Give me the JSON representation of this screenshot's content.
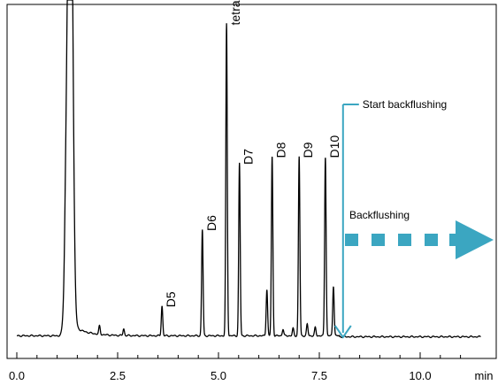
{
  "chart_data": {
    "type": "line",
    "xlabel": "min",
    "xlim": [
      0,
      11.5
    ],
    "ylim": [
      0,
      100
    ],
    "x_ticks": [
      0.0,
      2.5,
      5.0,
      7.5,
      10.0
    ],
    "x_tick_labels": [
      "0.0",
      "2.5",
      "5.0",
      "7.5",
      "10.0"
    ],
    "baseline": 1.5,
    "peaks": [
      {
        "x": 1.2,
        "height": 3
      },
      {
        "x": 1.28,
        "height": 100,
        "width": 0.06,
        "tail": true
      },
      {
        "x": 1.35,
        "height": 100,
        "width": 0.05
      },
      {
        "x": 2.05,
        "height": 2.5
      },
      {
        "x": 2.65,
        "height": 2
      },
      {
        "x": 3.6,
        "height": 9,
        "label": "D5"
      },
      {
        "x": 4.6,
        "height": 32,
        "label": "D6"
      },
      {
        "x": 5.2,
        "height": 94,
        "label": "tetradecane"
      },
      {
        "x": 5.52,
        "height": 52,
        "label": "D7"
      },
      {
        "x": 6.2,
        "height": 14
      },
      {
        "x": 6.33,
        "height": 54,
        "label": "D8"
      },
      {
        "x": 7.0,
        "height": 54,
        "label": "D9"
      },
      {
        "x": 7.65,
        "height": 54,
        "label": "D10"
      },
      {
        "x": 7.2,
        "height": 3.5
      },
      {
        "x": 7.4,
        "height": 2.5
      },
      {
        "x": 7.85,
        "height": 15
      },
      {
        "x": 6.6,
        "height": 2
      },
      {
        "x": 6.85,
        "height": 2.2
      }
    ],
    "annotations": {
      "start_backflush_label": "Start backflushing",
      "start_backflush_x": 8.0,
      "backflush_label": "Backflushing"
    },
    "colors": {
      "trace": "#000000",
      "backflush": "#3ba6c1",
      "axis": "#000000"
    }
  }
}
